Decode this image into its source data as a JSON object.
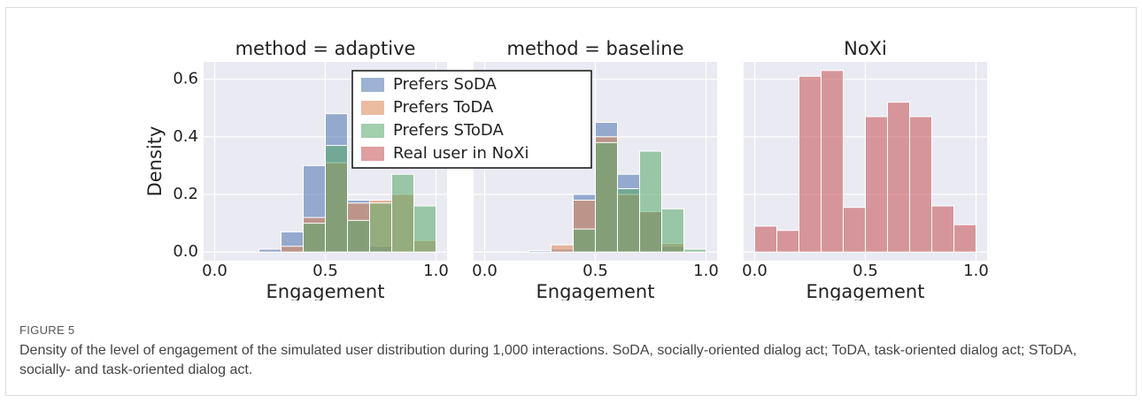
{
  "chart_data": [
    {
      "type": "histogram",
      "title": "method = adaptive",
      "xlabel": "Engagement",
      "ylabel": "Density",
      "bins": [
        0.2,
        0.3,
        0.4,
        0.5,
        0.6,
        0.7,
        0.8,
        0.9,
        1.0
      ],
      "series": [
        {
          "name": "Prefers SoDA",
          "color": "#4c72b0",
          "values": [
            0.01,
            0.07,
            0.3,
            0.48,
            0.18,
            0.02,
            0,
            0
          ]
        },
        {
          "name": "Prefers ToDA",
          "color": "#dd8452",
          "values": [
            0,
            0.02,
            0.12,
            0.31,
            0.17,
            0.18,
            0.2,
            0.04
          ]
        },
        {
          "name": "Prefers SToDA",
          "color": "#55a868",
          "values": [
            0,
            0,
            0.1,
            0.37,
            0.11,
            0.17,
            0.27,
            0.16
          ]
        }
      ],
      "xlim": [
        -0.05,
        1.05
      ],
      "xticks": [
        {
          "value": 0,
          "label": "0.0"
        },
        {
          "value": 0.5,
          "label": "0.5"
        },
        {
          "value": 1,
          "label": "1.0"
        }
      ],
      "ylim": [
        -0.03,
        0.66
      ],
      "yticks": [
        {
          "value": 0,
          "label": "0.0"
        },
        {
          "value": 0.2,
          "label": "0.2"
        },
        {
          "value": 0.4,
          "label": "0.4"
        },
        {
          "value": 0.6,
          "label": "0.6"
        }
      ],
      "grid": true
    },
    {
      "type": "histogram",
      "title": "method = baseline",
      "xlabel": "Engagement",
      "bins": [
        0.2,
        0.3,
        0.4,
        0.5,
        0.6,
        0.7,
        0.8,
        0.9,
        1.0
      ],
      "series": [
        {
          "name": "Prefers SoDA",
          "color": "#4c72b0",
          "values": [
            0.005,
            0.01,
            0.2,
            0.45,
            0.27,
            0.14,
            0.02,
            0
          ]
        },
        {
          "name": "Prefers ToDA",
          "color": "#dd8452",
          "values": [
            0,
            0.025,
            0.18,
            0.4,
            0.2,
            0.14,
            0.03,
            0
          ]
        },
        {
          "name": "Prefers SToDA",
          "color": "#55a868",
          "values": [
            0,
            0,
            0.08,
            0.38,
            0.22,
            0.35,
            0.15,
            0.01
          ]
        }
      ],
      "xlim": [
        -0.05,
        1.05
      ],
      "xticks": [
        {
          "value": 0,
          "label": "0.0"
        },
        {
          "value": 0.5,
          "label": "0.5"
        },
        {
          "value": 1,
          "label": "1.0"
        }
      ],
      "grid": true
    },
    {
      "type": "histogram",
      "title": "NoXi",
      "xlabel": "Engagement",
      "bins": [
        0.0,
        0.1,
        0.2,
        0.3,
        0.4,
        0.5,
        0.6,
        0.7,
        0.8,
        0.9,
        1.0
      ],
      "series": [
        {
          "name": "Real user in NoXi",
          "color": "#c44e52",
          "values": [
            0.09,
            0.075,
            0.61,
            0.63,
            0.155,
            0.47,
            0.52,
            0.47,
            0.16,
            0.095
          ]
        }
      ],
      "xlim": [
        -0.05,
        1.05
      ],
      "xticks": [
        {
          "value": 0,
          "label": "0.0"
        },
        {
          "value": 0.5,
          "label": "0.5"
        },
        {
          "value": 1,
          "label": "1.0"
        }
      ],
      "grid": true
    }
  ],
  "figure_label": "FIGURE 5",
  "caption": "Density of the level of engagement of the simulated user distribution during 1,000 interactions. SoDA, socially-oriented dialog act; ToDA, task-oriented dialog act; SToDA, socially- and task-oriented dialog act."
}
